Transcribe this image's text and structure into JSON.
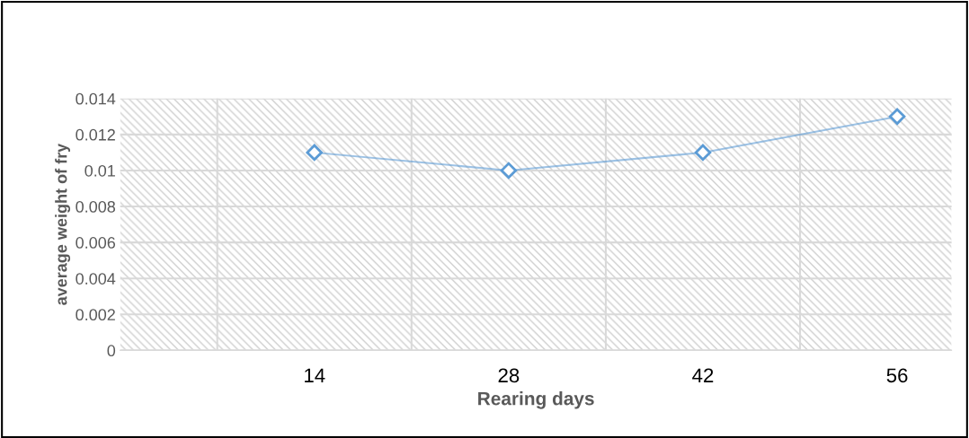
{
  "chart_data": {
    "type": "line",
    "xlabel": "Rearing days",
    "ylabel": "average weight of fry",
    "categories": [
      "14",
      "28",
      "42",
      "56"
    ],
    "series": [
      {
        "color": "#5b9bd5",
        "values": [
          0.011,
          0.01,
          0.011,
          0.013
        ]
      }
    ],
    "ylim": [
      0,
      0.014
    ],
    "yticks": [
      {
        "value": 0,
        "label": "0"
      },
      0.002,
      0.004,
      0.006,
      0.008,
      0.01,
      0.012,
      0.014
    ],
    "grid": true,
    "marker": "diamond",
    "line_style": "solid"
  }
}
